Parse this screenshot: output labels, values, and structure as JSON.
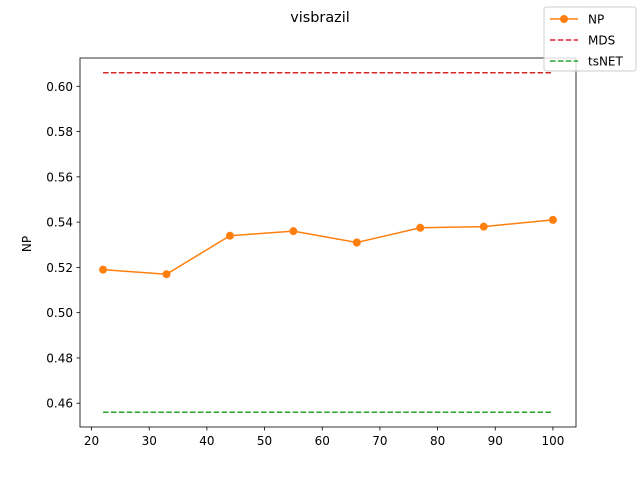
{
  "chart_data": {
    "type": "line",
    "title": "visbrazil",
    "xlabel": "",
    "ylabel": "NP",
    "xlim": [
      18,
      104
    ],
    "ylim": [
      0.4495,
      0.6125
    ],
    "xticks": [
      20,
      30,
      40,
      50,
      60,
      70,
      80,
      90,
      100
    ],
    "yticks": [
      0.46,
      0.48,
      0.5,
      0.52,
      0.54,
      0.56,
      0.58,
      0.6
    ],
    "legend_position": "top-right",
    "grid": false,
    "series": [
      {
        "name": "NP",
        "style": "solid-marker",
        "color": "#ff7f0e",
        "x": [
          22,
          33,
          44,
          55,
          66,
          77,
          88,
          100
        ],
        "y": [
          0.519,
          0.517,
          0.534,
          0.536,
          0.531,
          0.5375,
          0.538,
          0.541
        ]
      },
      {
        "name": "MDS",
        "style": "dashed",
        "color": "#d62728",
        "x": [
          22,
          100
        ],
        "y": [
          0.606,
          0.606
        ]
      },
      {
        "name": "tsNET",
        "style": "dashed",
        "color": "#2ca02c",
        "x": [
          22,
          100
        ],
        "y": [
          0.456,
          0.456
        ]
      }
    ]
  }
}
